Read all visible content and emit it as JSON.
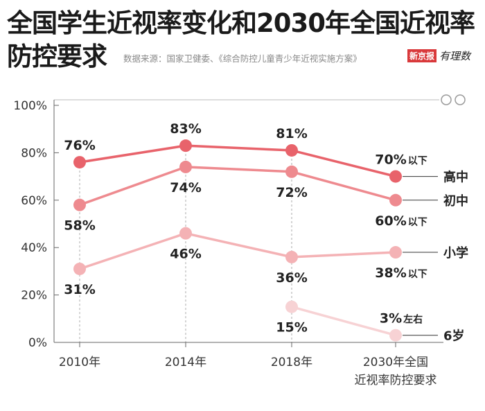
{
  "header": {
    "title_line1": "全国学生近视率变化和2030年全国近视率",
    "title_line2": "防控要求",
    "source": "数据来源：国家卫健委、《综合防控儿童青少年近视实施方案》",
    "brand_name": "新京报",
    "brand_tag": "有理数"
  },
  "chart_data": {
    "type": "line",
    "title": "全国学生近视率变化和2030年全国近视率防控要求",
    "categories": [
      "2010年",
      "2014年",
      "2018年",
      "2030年全国近视率防控要求"
    ],
    "category_labels": [
      [
        "2010年"
      ],
      [
        "2014年"
      ],
      [
        "2018年"
      ],
      [
        "2030年全国",
        "近视率防控要求"
      ]
    ],
    "ylim": [
      0,
      100
    ],
    "yticks": [
      0,
      20,
      40,
      60,
      80,
      100
    ],
    "ytick_labels": [
      "0%",
      "20%",
      "40%",
      "60%",
      "80%",
      "100%"
    ],
    "series": [
      {
        "name": "高中",
        "color": "#e8636b",
        "values": [
          76,
          83,
          81,
          70
        ],
        "labels": [
          {
            "main": "76%",
            "suffix": ""
          },
          {
            "main": "83%",
            "suffix": ""
          },
          {
            "main": "81%",
            "suffix": ""
          },
          {
            "main": "70%",
            "suffix": "以下"
          }
        ],
        "label_pos": [
          "above",
          "above",
          "above",
          "above"
        ]
      },
      {
        "name": "初中",
        "color": "#ee8a8f",
        "values": [
          58,
          74,
          72,
          60
        ],
        "labels": [
          {
            "main": "58%",
            "suffix": ""
          },
          {
            "main": "74%",
            "suffix": ""
          },
          {
            "main": "72%",
            "suffix": ""
          },
          {
            "main": "60%",
            "suffix": "以下"
          }
        ],
        "label_pos": [
          "below",
          "below",
          "below",
          "below"
        ]
      },
      {
        "name": "小学",
        "color": "#f4b2b5",
        "values": [
          31,
          46,
          36,
          38
        ],
        "labels": [
          {
            "main": "31%",
            "suffix": ""
          },
          {
            "main": "46%",
            "suffix": ""
          },
          {
            "main": "36%",
            "suffix": ""
          },
          {
            "main": "38%",
            "suffix": "以下"
          }
        ],
        "label_pos": [
          "below",
          "below",
          "below",
          "below"
        ]
      },
      {
        "name": "6岁",
        "color": "#f7d2d4",
        "values": [
          null,
          null,
          15,
          3
        ],
        "labels": [
          null,
          null,
          {
            "main": "15%",
            "suffix": ""
          },
          {
            "main": "3%",
            "suffix": "左右"
          }
        ],
        "label_pos": [
          null,
          null,
          "below",
          "above"
        ]
      }
    ]
  }
}
